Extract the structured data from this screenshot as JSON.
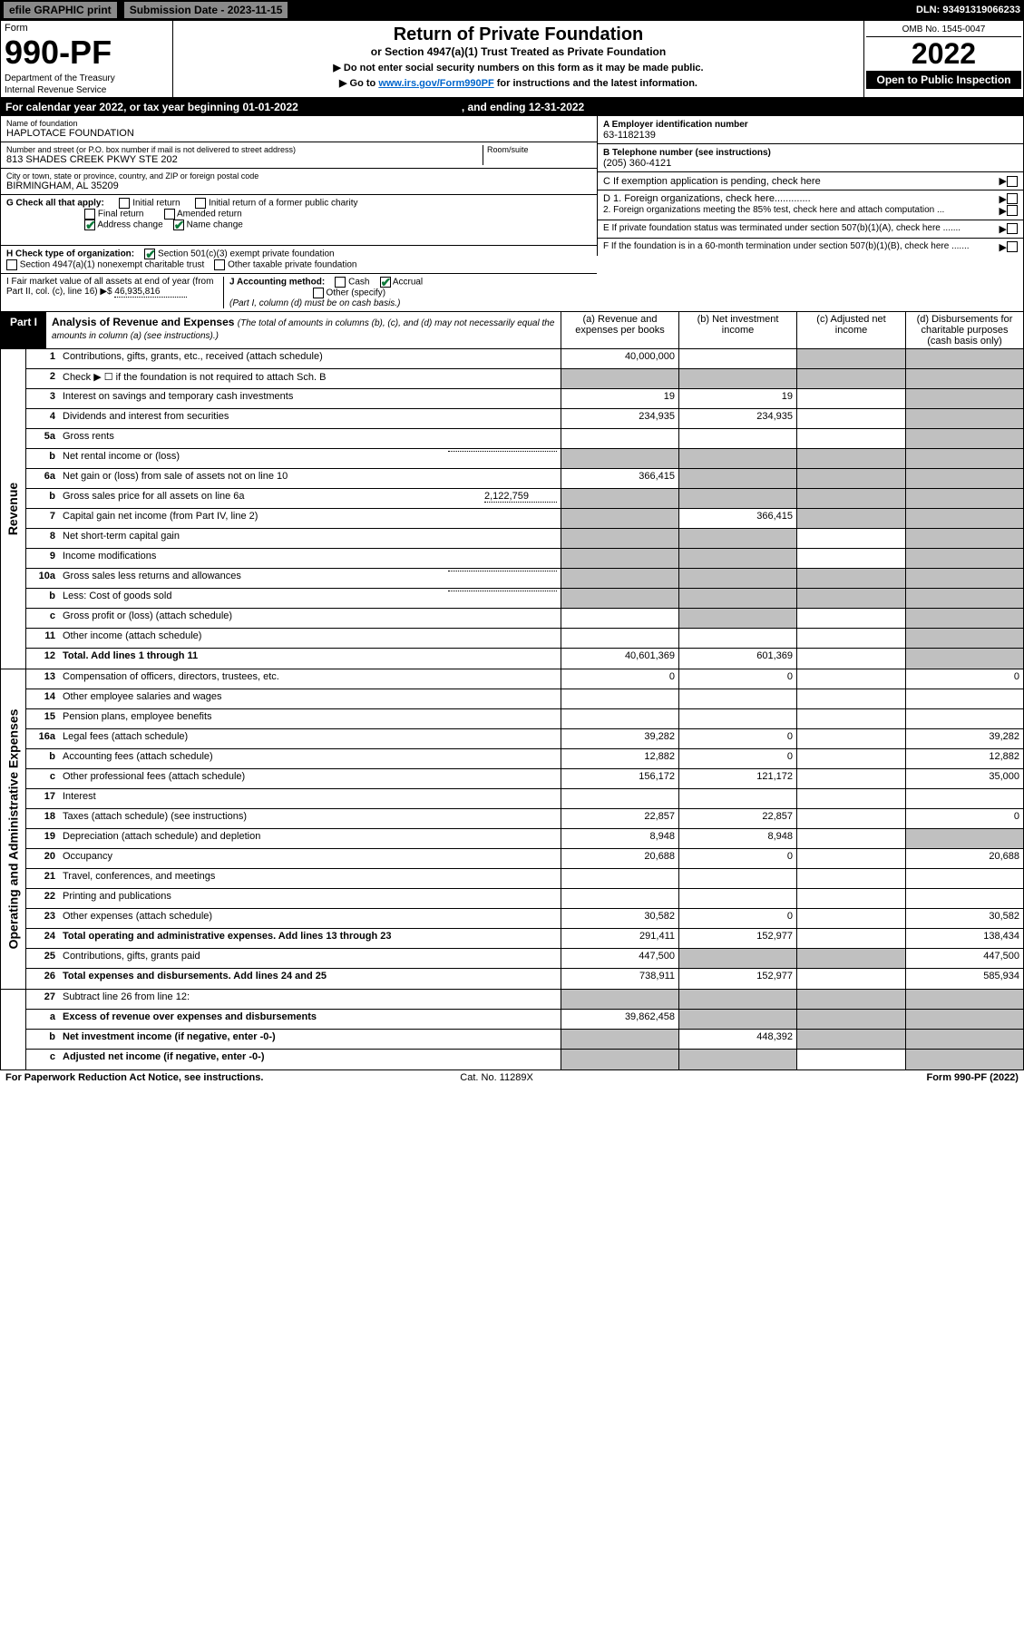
{
  "topbar": {
    "efile": "efile GRAPHIC print",
    "submission": "Submission Date - 2023-11-15",
    "dln": "DLN: 93491319066233"
  },
  "header": {
    "form_small": "Form",
    "form_no": "990-PF",
    "dept": "Department of the Treasury",
    "irs": "Internal Revenue Service",
    "title": "Return of Private Foundation",
    "subtitle": "or Section 4947(a)(1) Trust Treated as Private Foundation",
    "note1": "▶ Do not enter social security numbers on this form as it may be made public.",
    "note2_pre": "▶ Go to ",
    "note2_link": "www.irs.gov/Form990PF",
    "note2_post": " for instructions and the latest information.",
    "omb": "OMB No. 1545-0047",
    "year": "2022",
    "open": "Open to Public Inspection"
  },
  "calyear": {
    "text1": "For calendar year 2022, or tax year beginning 01-01-2022",
    "text2": ", and ending 12-31-2022"
  },
  "info": {
    "name_label": "Name of foundation",
    "name": "HAPLOTACE FOUNDATION",
    "addr_label": "Number and street (or P.O. box number if mail is not delivered to street address)",
    "addr": "813 SHADES CREEK PKWY STE 202",
    "room_label": "Room/suite",
    "city_label": "City or town, state or province, country, and ZIP or foreign postal code",
    "city": "BIRMINGHAM, AL  35209",
    "ein_label": "A Employer identification number",
    "ein": "63-1182139",
    "phone_label": "B Telephone number (see instructions)",
    "phone": "(205) 360-4121",
    "c_label": "C If exemption application is pending, check here",
    "d1": "D 1. Foreign organizations, check here.............",
    "d2": "2. Foreign organizations meeting the 85% test, check here and attach computation ...",
    "e": "E  If private foundation status was terminated under section 507(b)(1)(A), check here .......",
    "f": "F  If the foundation is in a 60-month termination under section 507(b)(1)(B), check here .......",
    "g_label": "G Check all that apply:",
    "g_initial": "Initial return",
    "g_final": "Final return",
    "g_addr": "Address change",
    "g_initial_former": "Initial return of a former public charity",
    "g_amended": "Amended return",
    "g_name": "Name change",
    "h_label": "H Check type of organization:",
    "h_501": "Section 501(c)(3) exempt private foundation",
    "h_4947": "Section 4947(a)(1) nonexempt charitable trust",
    "h_other": "Other taxable private foundation",
    "i_label": "I Fair market value of all assets at end of year (from Part II, col. (c), line 16) ▶$ ",
    "i_val": "46,935,816",
    "j_label": "J Accounting method:",
    "j_cash": "Cash",
    "j_accrual": "Accrual",
    "j_other": "Other (specify)",
    "j_note": "(Part I, column (d) must be on cash basis.)"
  },
  "part1": {
    "label": "Part I",
    "title": "Analysis of Revenue and Expenses",
    "subtitle": "(The total of amounts in columns (b), (c), and (d) may not necessarily equal the amounts in column (a) (see instructions).)",
    "col_a": "(a)   Revenue and expenses per books",
    "col_b": "(b)   Net investment income",
    "col_c": "(c)   Adjusted net income",
    "col_d": "(d)  Disbursements for charitable purposes (cash basis only)"
  },
  "sidelabels": {
    "revenue": "Revenue",
    "expenses": "Operating and Administrative Expenses"
  },
  "rows": [
    {
      "no": "1",
      "desc": "Contributions, gifts, grants, etc., received (attach schedule)",
      "a": "40,000,000",
      "b": "",
      "c": "s",
      "d": "s"
    },
    {
      "no": "2",
      "desc": "Check ▶ ☐ if the foundation is not required to attach Sch. B",
      "a": "s",
      "b": "s",
      "c": "s",
      "d": "s"
    },
    {
      "no": "3",
      "desc": "Interest on savings and temporary cash investments",
      "a": "19",
      "b": "19",
      "c": "",
      "d": "s"
    },
    {
      "no": "4",
      "desc": "Dividends and interest from securities",
      "a": "234,935",
      "b": "234,935",
      "c": "",
      "d": "s"
    },
    {
      "no": "5a",
      "desc": "Gross rents",
      "a": "",
      "b": "",
      "c": "",
      "d": "s"
    },
    {
      "no": "b",
      "desc": "Net rental income or (loss)",
      "a": "s",
      "b": "s",
      "c": "s",
      "d": "s",
      "inline": true
    },
    {
      "no": "6a",
      "desc": "Net gain or (loss) from sale of assets not on line 10",
      "a": "366,415",
      "b": "s",
      "c": "s",
      "d": "s"
    },
    {
      "no": "b",
      "desc": "Gross sales price for all assets on line 6a",
      "inline_val": "2,122,759",
      "a": "s",
      "b": "s",
      "c": "s",
      "d": "s"
    },
    {
      "no": "7",
      "desc": "Capital gain net income (from Part IV, line 2)",
      "a": "s",
      "b": "366,415",
      "c": "s",
      "d": "s"
    },
    {
      "no": "8",
      "desc": "Net short-term capital gain",
      "a": "s",
      "b": "s",
      "c": "",
      "d": "s"
    },
    {
      "no": "9",
      "desc": "Income modifications",
      "a": "s",
      "b": "s",
      "c": "",
      "d": "s"
    },
    {
      "no": "10a",
      "desc": "Gross sales less returns and allowances",
      "a": "s",
      "b": "s",
      "c": "s",
      "d": "s",
      "inline": true
    },
    {
      "no": "b",
      "desc": "Less: Cost of goods sold",
      "a": "s",
      "b": "s",
      "c": "s",
      "d": "s",
      "inline": true
    },
    {
      "no": "c",
      "desc": "Gross profit or (loss) (attach schedule)",
      "a": "",
      "b": "s",
      "c": "",
      "d": "s"
    },
    {
      "no": "11",
      "desc": "Other income (attach schedule)",
      "a": "",
      "b": "",
      "c": "",
      "d": "s"
    },
    {
      "no": "12",
      "desc": "Total. Add lines 1 through 11",
      "a": "40,601,369",
      "b": "601,369",
      "c": "",
      "d": "s",
      "bold": true
    }
  ],
  "exprows": [
    {
      "no": "13",
      "desc": "Compensation of officers, directors, trustees, etc.",
      "a": "0",
      "b": "0",
      "c": "",
      "d": "0"
    },
    {
      "no": "14",
      "desc": "Other employee salaries and wages",
      "a": "",
      "b": "",
      "c": "",
      "d": ""
    },
    {
      "no": "15",
      "desc": "Pension plans, employee benefits",
      "a": "",
      "b": "",
      "c": "",
      "d": ""
    },
    {
      "no": "16a",
      "desc": "Legal fees (attach schedule)",
      "a": "39,282",
      "b": "0",
      "c": "",
      "d": "39,282"
    },
    {
      "no": "b",
      "desc": "Accounting fees (attach schedule)",
      "a": "12,882",
      "b": "0",
      "c": "",
      "d": "12,882"
    },
    {
      "no": "c",
      "desc": "Other professional fees (attach schedule)",
      "a": "156,172",
      "b": "121,172",
      "c": "",
      "d": "35,000"
    },
    {
      "no": "17",
      "desc": "Interest",
      "a": "",
      "b": "",
      "c": "",
      "d": ""
    },
    {
      "no": "18",
      "desc": "Taxes (attach schedule) (see instructions)",
      "a": "22,857",
      "b": "22,857",
      "c": "",
      "d": "0"
    },
    {
      "no": "19",
      "desc": "Depreciation (attach schedule) and depletion",
      "a": "8,948",
      "b": "8,948",
      "c": "",
      "d": "s"
    },
    {
      "no": "20",
      "desc": "Occupancy",
      "a": "20,688",
      "b": "0",
      "c": "",
      "d": "20,688"
    },
    {
      "no": "21",
      "desc": "Travel, conferences, and meetings",
      "a": "",
      "b": "",
      "c": "",
      "d": ""
    },
    {
      "no": "22",
      "desc": "Printing and publications",
      "a": "",
      "b": "",
      "c": "",
      "d": ""
    },
    {
      "no": "23",
      "desc": "Other expenses (attach schedule)",
      "a": "30,582",
      "b": "0",
      "c": "",
      "d": "30,582"
    },
    {
      "no": "24",
      "desc": "Total operating and administrative expenses. Add lines 13 through 23",
      "a": "291,411",
      "b": "152,977",
      "c": "",
      "d": "138,434",
      "bold": true
    },
    {
      "no": "25",
      "desc": "Contributions, gifts, grants paid",
      "a": "447,500",
      "b": "s",
      "c": "s",
      "d": "447,500"
    },
    {
      "no": "26",
      "desc": "Total expenses and disbursements. Add lines 24 and 25",
      "a": "738,911",
      "b": "152,977",
      "c": "",
      "d": "585,934",
      "bold": true
    }
  ],
  "bottomrows": [
    {
      "no": "27",
      "desc": "Subtract line 26 from line 12:",
      "a": "s",
      "b": "s",
      "c": "s",
      "d": "s"
    },
    {
      "no": "a",
      "desc": "Excess of revenue over expenses and disbursements",
      "a": "39,862,458",
      "b": "s",
      "c": "s",
      "d": "s",
      "bold": true
    },
    {
      "no": "b",
      "desc": "Net investment income (if negative, enter -0-)",
      "a": "s",
      "b": "448,392",
      "c": "s",
      "d": "s",
      "bold": true
    },
    {
      "no": "c",
      "desc": "Adjusted net income (if negative, enter -0-)",
      "a": "s",
      "b": "s",
      "c": "",
      "d": "s",
      "bold": true
    }
  ],
  "footer": {
    "left": "For Paperwork Reduction Act Notice, see instructions.",
    "mid": "Cat. No. 11289X",
    "right": "Form 990-PF (2022)"
  }
}
